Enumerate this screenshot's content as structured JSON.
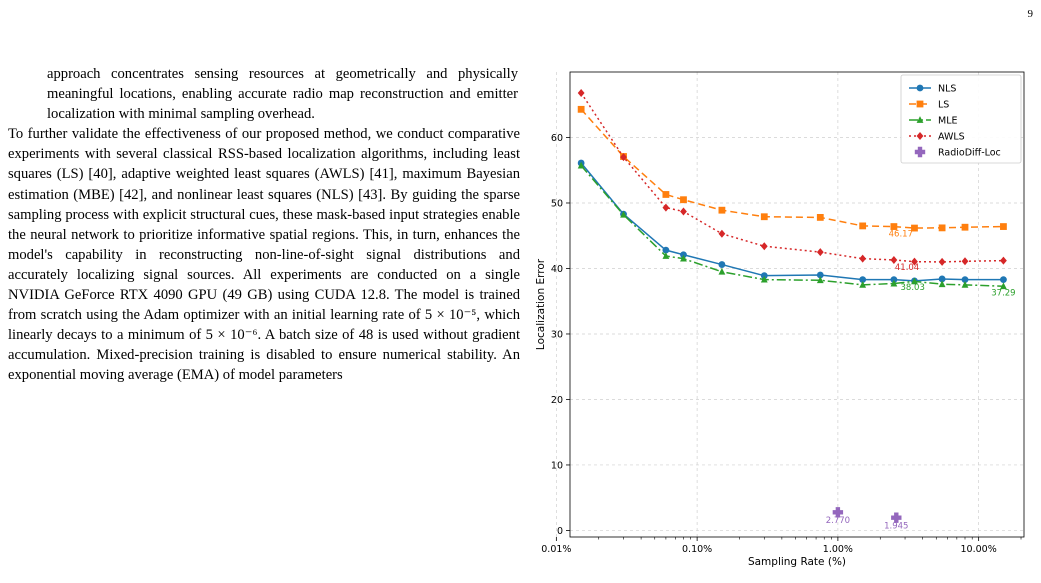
{
  "page": {
    "number": "9"
  },
  "text": {
    "para1": "approach concentrates sensing resources at geometrically and physically meaningful locations, enabling accurate radio map reconstruction and emitter localization with minimal sampling overhead.",
    "para2": "To further validate the effectiveness of our proposed method, we conduct comparative experiments with several classical RSS-based localization algorithms, including least squares (LS) [40], adaptive weighted least squares (AWLS) [41], maximum Bayesian estimation (MBE) [42], and nonlinear least squares (NLS) [43]. By guiding the sparse sampling process with explicit structural cues, these mask-based input strategies enable the neural network to prioritize informative spatial regions. This, in turn, enhances the model's capability in reconstructing non-line-of-sight signal distributions and accurately localizing signal sources. All experiments are conducted on a single NVIDIA GeForce RTX 4090 GPU (49 GB) using CUDA 12.8. The model is trained from scratch using the Adam optimizer with an initial learning rate of 5 × 10⁻⁵, which linearly decays to a minimum of 5 × 10⁻⁶. A batch size of 48 is used without gradient accumulation. Mixed-precision training is disabled to ensure numerical stability. An exponential moving average (EMA) of model parameters"
  },
  "chart_data": {
    "type": "line",
    "xlabel": "Sampling Rate (%)",
    "ylabel": "Localization Error",
    "xscale": "log",
    "xlim": [
      0.0125,
      21
    ],
    "ylim": [
      -1,
      70
    ],
    "xticks": [
      0.01,
      0.1,
      1,
      10
    ],
    "xtick_labels": [
      "0.01%",
      "0.10%",
      "1.00%",
      "10.00%"
    ],
    "yticks": [
      0,
      10,
      20,
      30,
      40,
      50,
      60
    ],
    "grid": true,
    "legend_position": "top-right",
    "x": [
      0.015,
      0.03,
      0.06,
      0.08,
      0.15,
      0.3,
      0.75,
      1.5,
      2.5,
      3.5,
      5.5,
      8.0,
      15.0
    ],
    "series": [
      {
        "name": "NLS",
        "color": "#1f77b4",
        "marker": "circle",
        "dash": "",
        "values": [
          56.1,
          48.3,
          42.8,
          42.1,
          40.6,
          38.9,
          39.0,
          38.3,
          38.3,
          38.1,
          38.4,
          38.3,
          38.3
        ]
      },
      {
        "name": "LS",
        "color": "#ff7f0e",
        "marker": "square",
        "dash": "7,4",
        "values": [
          64.3,
          57.1,
          51.3,
          50.5,
          48.9,
          47.9,
          47.8,
          46.5,
          46.4,
          46.17,
          46.2,
          46.3,
          46.4
        ]
      },
      {
        "name": "MLE",
        "color": "#2ca02c",
        "marker": "triangle",
        "dash": "9,3,2,3",
        "values": [
          55.7,
          48.2,
          41.9,
          41.5,
          39.5,
          38.3,
          38.2,
          37.5,
          37.7,
          38.03,
          37.6,
          37.5,
          37.29
        ]
      },
      {
        "name": "AWLS",
        "color": "#d62728",
        "marker": "diamond",
        "dash": "2,3",
        "values": [
          66.8,
          57.0,
          49.3,
          48.7,
          45.3,
          43.4,
          42.5,
          41.5,
          41.3,
          41.04,
          41.0,
          41.1,
          41.2
        ]
      },
      {
        "name": "RadioDiff-Loc",
        "color": "#9467bd",
        "marker": "plus",
        "dash": "none",
        "x": [
          1.0,
          2.6
        ],
        "values": [
          2.77,
          1.945
        ]
      }
    ],
    "annotations": [
      {
        "text": "46.17",
        "x": 2.8,
        "y": 44.9,
        "color": "#ff7f0e"
      },
      {
        "text": "41.04",
        "x": 3.1,
        "y": 39.8,
        "color": "#d62728"
      },
      {
        "text": "38.03",
        "x": 3.4,
        "y": 36.7,
        "color": "#2ca02c"
      },
      {
        "text": "37.29",
        "x": 15.0,
        "y": 35.9,
        "color": "#2ca02c"
      },
      {
        "text": "2.770",
        "x": 1.0,
        "y": 1.1,
        "color": "#9467bd"
      },
      {
        "text": "1.945",
        "x": 2.6,
        "y": 0.3,
        "color": "#9467bd"
      }
    ]
  }
}
